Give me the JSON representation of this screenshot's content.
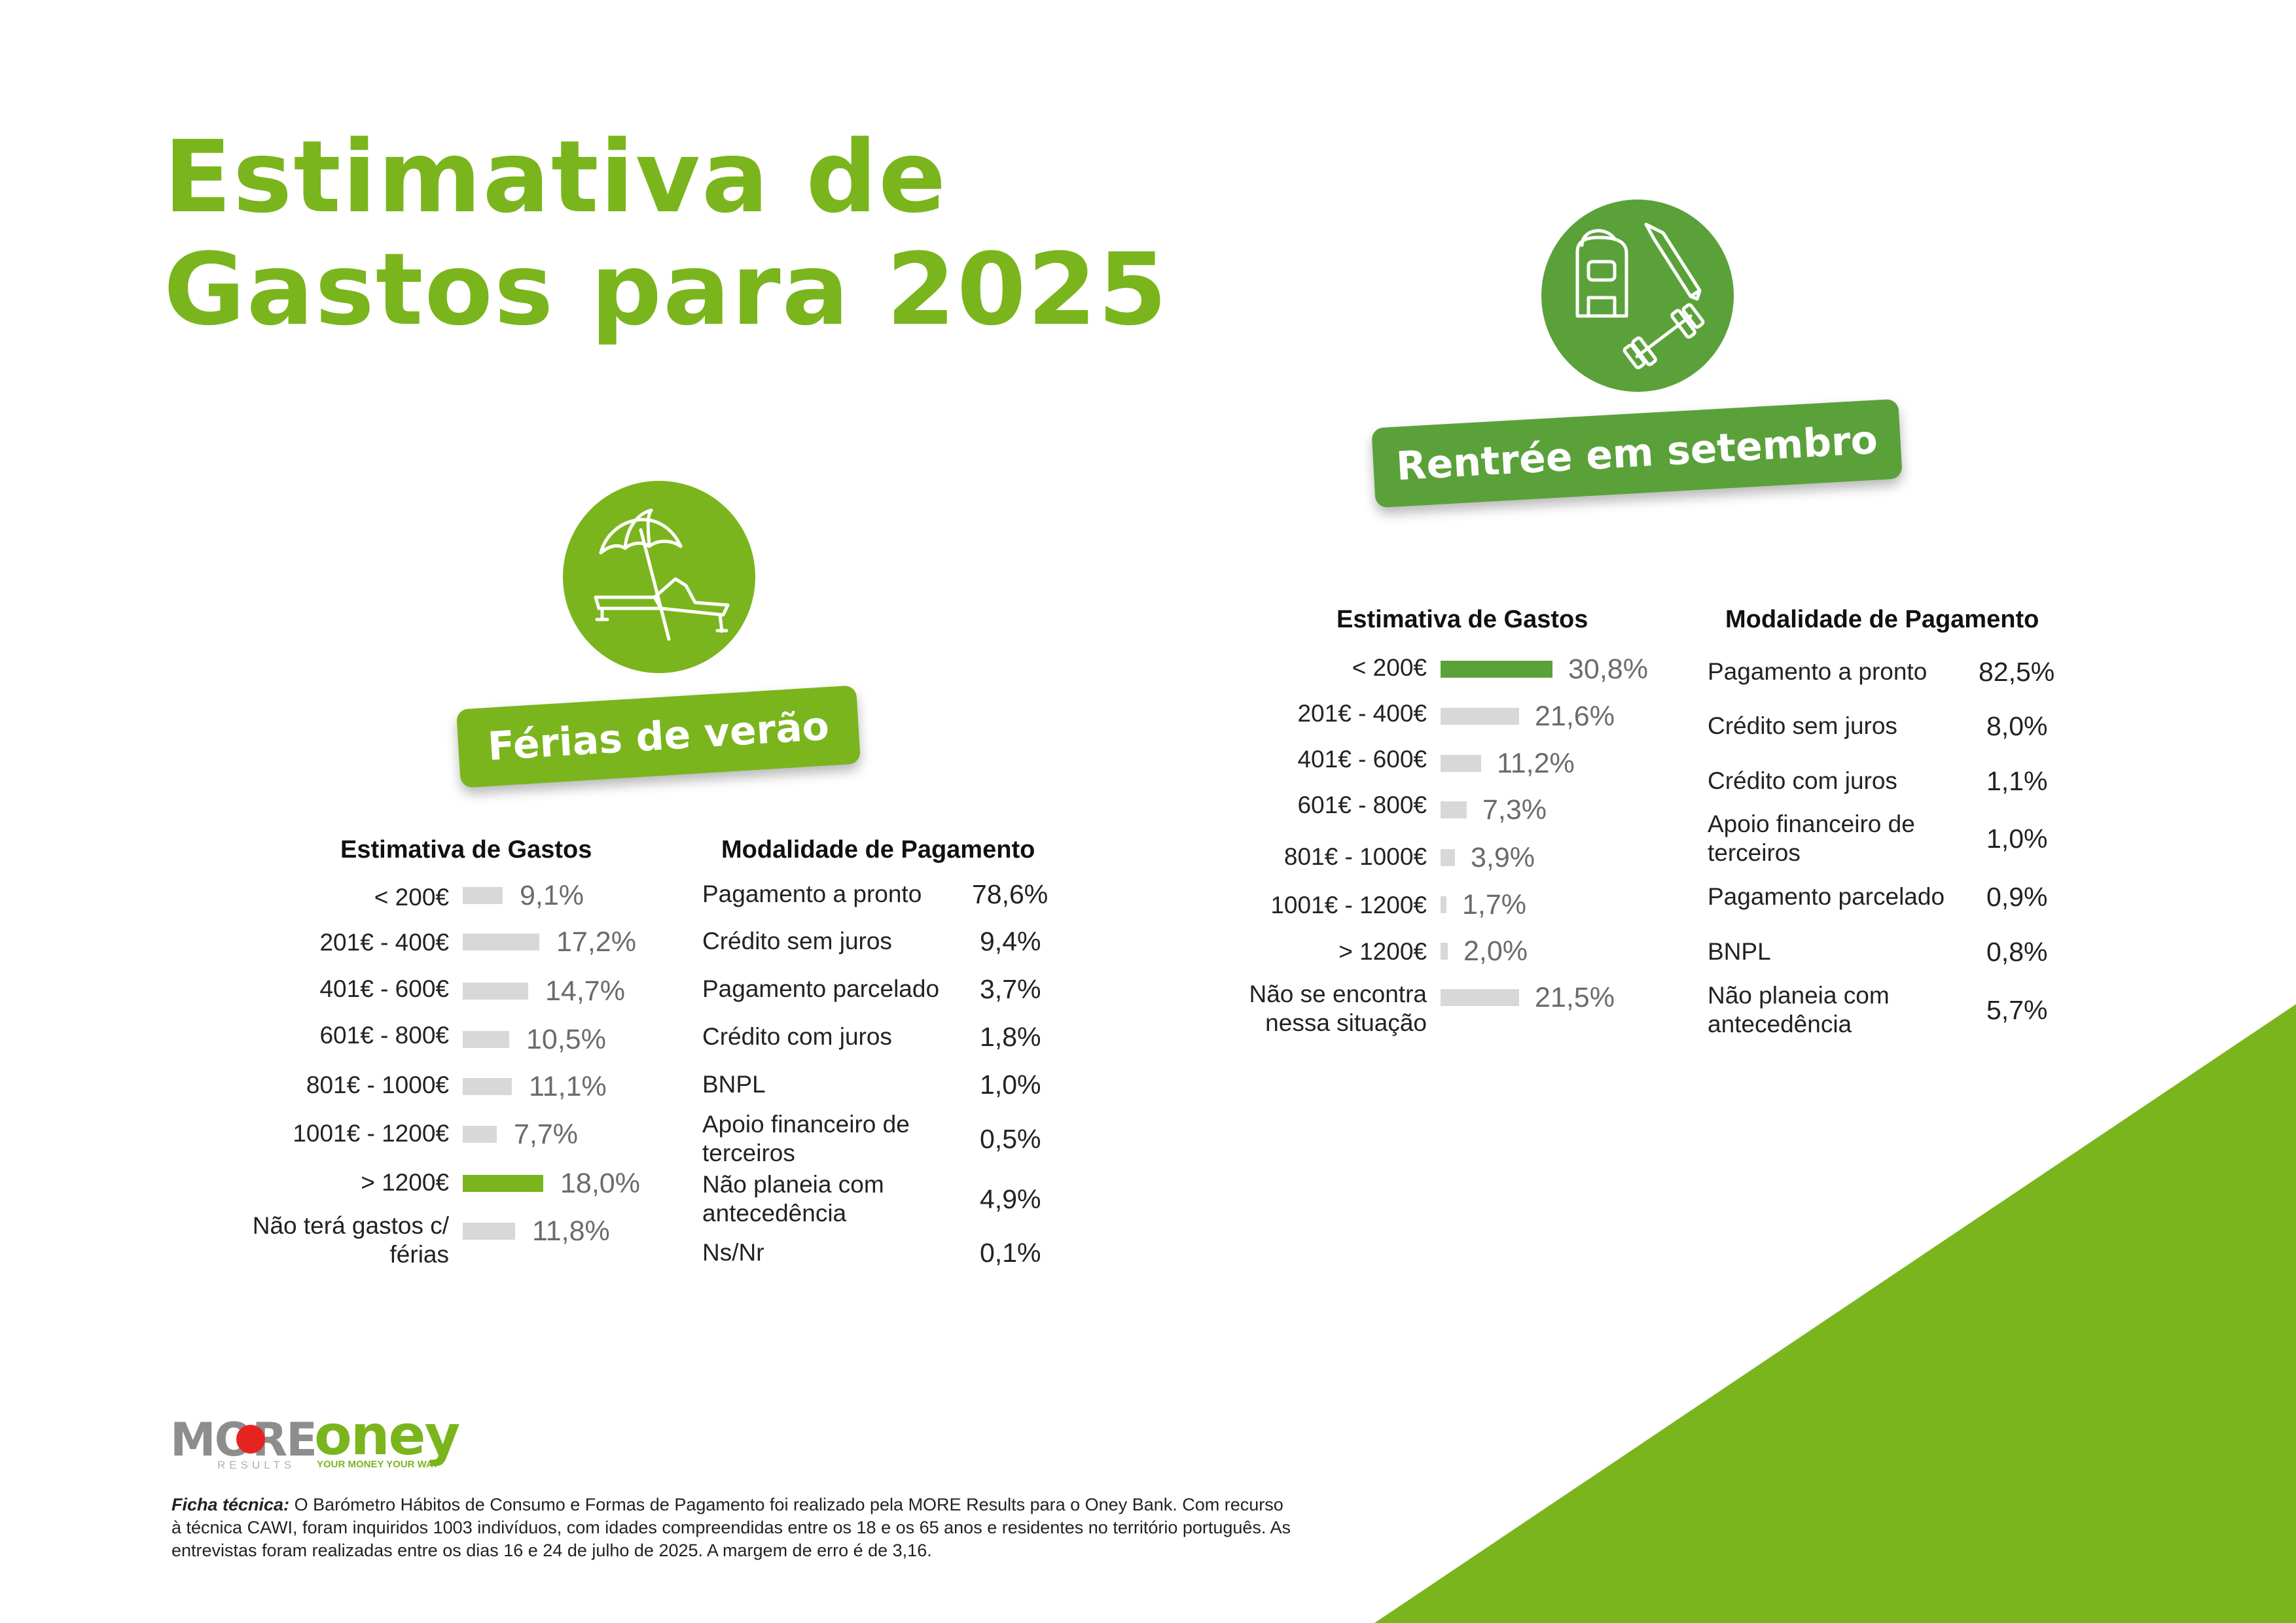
{
  "title": {
    "line1": "Estimativa de",
    "line2": "Gastos para 2025"
  },
  "colors": {
    "accent_green": "#7ab51d",
    "dark_green": "#5aa13a",
    "bar_gray": "#d8d8d8"
  },
  "ferias": {
    "label": "Férias de verão",
    "icon": "beach-umbrella-lounger-icon",
    "gastos_header": "Estimativa de Gastos",
    "pagamento_header": "Modalidade de Pagamento",
    "gastos": [
      {
        "label": "< 200€",
        "value": "9,1%"
      },
      {
        "label": "201€ - 400€",
        "value": "17,2%"
      },
      {
        "label": "401€ - 600€",
        "value": "14,7%"
      },
      {
        "label": "601€ - 800€",
        "value": "10,5%"
      },
      {
        "label": "801€ - 1000€",
        "value": "11,1%"
      },
      {
        "label": "1001€ - 1200€",
        "value": "7,7%"
      },
      {
        "label": "> 1200€",
        "value": "18,0%"
      },
      {
        "label": "Não terá gastos c/ férias",
        "value": "11,8%"
      }
    ],
    "pagamento": [
      {
        "label": "Pagamento a pronto",
        "value": "78,6%"
      },
      {
        "label": "Crédito sem juros",
        "value": "9,4%"
      },
      {
        "label": "Pagamento parcelado",
        "value": "3,7%"
      },
      {
        "label": "Crédito com juros",
        "value": "1,8%"
      },
      {
        "label": "BNPL",
        "value": "1,0%"
      },
      {
        "label": "Apoio financeiro de terceiros",
        "value": "0,5%"
      },
      {
        "label": "Não planeia com antecedência",
        "value": "4,9%"
      },
      {
        "label": "Ns/Nr",
        "value": "0,1%"
      }
    ]
  },
  "rentree": {
    "label": "Rentrée em setembro",
    "icon": "backpack-pencil-dumbbell-icon",
    "gastos_header": "Estimativa de Gastos",
    "pagamento_header": "Modalidade de Pagamento",
    "gastos": [
      {
        "label": "< 200€",
        "value": "30,8%"
      },
      {
        "label": "201€ - 400€",
        "value": "21,6%"
      },
      {
        "label": "401€ - 600€",
        "value": "11,2%"
      },
      {
        "label": "601€ - 800€",
        "value": "7,3%"
      },
      {
        "label": "801€ - 1000€",
        "value": "3,9%"
      },
      {
        "label": "1001€ - 1200€",
        "value": "1,7%"
      },
      {
        "label": "> 1200€",
        "value": "2,0%"
      },
      {
        "label": "Não se encontra nessa situação",
        "value": "21,5%"
      }
    ],
    "pagamento": [
      {
        "label": "Pagamento a pronto",
        "value": "82,5%"
      },
      {
        "label": "Crédito sem juros",
        "value": "8,0%"
      },
      {
        "label": "Crédito com juros",
        "value": "1,1%"
      },
      {
        "label": "Apoio financeiro de terceiros",
        "value": "1,0%"
      },
      {
        "label": "Pagamento parcelado",
        "value": "0,9%"
      },
      {
        "label": "BNPL",
        "value": "0,8%"
      },
      {
        "label": "Não planeia com antecedência",
        "value": "5,7%"
      }
    ]
  },
  "logos": {
    "more": "MORE",
    "more_sub": "RESULTS",
    "oney": "oney",
    "oney_tagline": "YOUR MONEY YOUR WAY"
  },
  "footnote": {
    "label": "Ficha técnica:",
    "text": "O Barómetro Hábitos de Consumo e Formas de Pagamento foi realizado pela MORE Results para o Oney Bank. Com recurso à técnica CAWI, foram inquiridos 1003 indivíduos, com idades compreendidas entre os 18 e os 65 anos e residentes no território português. As entrevistas foram realizadas entre os dias 16 e 24 de julho de 2025.  A margem de erro é de 3,16."
  }
}
